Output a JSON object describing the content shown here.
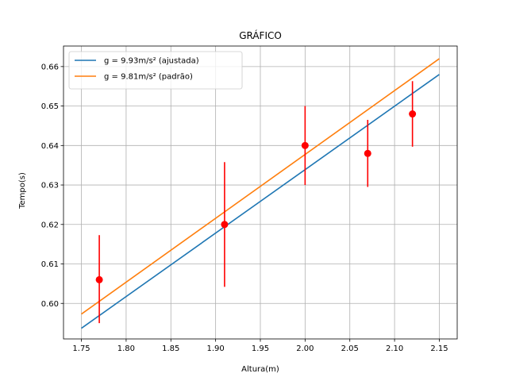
{
  "chart_data": {
    "type": "line",
    "title": "GRÁFICO",
    "xlabel": "Altura(m)",
    "ylabel": "Tempo(s)",
    "xlim": [
      1.73,
      2.17
    ],
    "ylim": [
      0.591,
      0.6652
    ],
    "xticks": [
      1.75,
      1.8,
      1.85,
      1.9,
      1.95,
      2.0,
      2.05,
      2.1,
      2.15
    ],
    "xtick_labels": [
      "1.75",
      "1.80",
      "1.85",
      "1.90",
      "1.95",
      "2.00",
      "2.05",
      "2.10",
      "2.15"
    ],
    "yticks": [
      0.6,
      0.61,
      0.62,
      0.63,
      0.64,
      0.65,
      0.66
    ],
    "ytick_labels": [
      "0.60",
      "0.61",
      "0.62",
      "0.63",
      "0.64",
      "0.65",
      "0.66"
    ],
    "grid": true,
    "legend_position": "top-left",
    "series": [
      {
        "name": "g = 9.93m/s² (ajustada)",
        "type": "line",
        "color": "#1f77b4",
        "x": [
          1.75,
          2.15
        ],
        "y": [
          0.5937,
          0.658
        ]
      },
      {
        "name": "g = 9.81m/s² (padrão)",
        "type": "line",
        "color": "#ff7f0e",
        "x": [
          1.75,
          2.15
        ],
        "y": [
          0.5973,
          0.662
        ]
      }
    ],
    "measurements": {
      "type": "scatter-errorbar",
      "color": "#ff0000",
      "x": [
        1.77,
        1.91,
        2.0,
        2.07,
        2.12
      ],
      "y": [
        0.606,
        0.62,
        0.64,
        0.638,
        0.648
      ],
      "yerr_low": [
        0.595,
        0.6042,
        0.63,
        0.6295,
        0.6397
      ],
      "yerr_high": [
        0.6173,
        0.6358,
        0.65,
        0.6465,
        0.6563
      ]
    }
  }
}
